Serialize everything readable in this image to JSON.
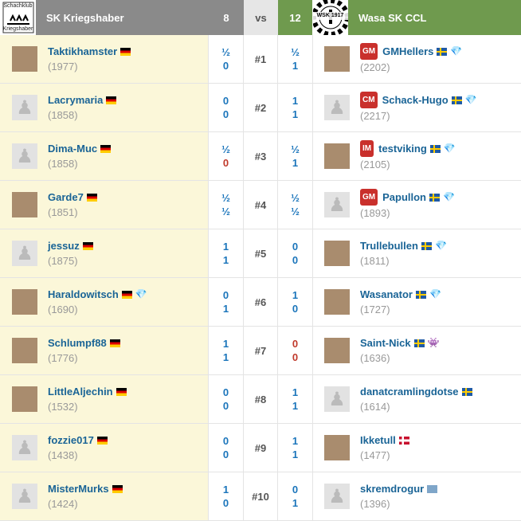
{
  "header": {
    "home_team": "SK Kriegshaber",
    "home_score": "8",
    "vs": "vs",
    "away_score": "12",
    "away_team": "Wasa SK CCL",
    "home_logo_text": "Schachklub Kriegshaber",
    "away_logo_text": "WSK 1917"
  },
  "colors": {
    "home_header": "#8a8a8a",
    "away_header": "#6f9a4e",
    "home_bg": "#fbf7d9",
    "score_blue": "#1b75bb",
    "score_red": "#c0392b"
  },
  "boards": [
    {
      "no": "#1",
      "home": {
        "name": "Taktikhamster",
        "rating": "(1977)",
        "flag": "de",
        "avatar": "photo"
      },
      "hs": [
        "½",
        "0"
      ],
      "as": [
        "½",
        "1"
      ],
      "away": {
        "name": "GMHellers",
        "title": "GM",
        "rating": "(2202)",
        "flag": "se",
        "badge": "diamond",
        "avatar": "photo"
      }
    },
    {
      "no": "#2",
      "home": {
        "name": "Lacrymaria",
        "rating": "(1858)",
        "flag": "de",
        "avatar": "pawn"
      },
      "hs": [
        "0",
        "0"
      ],
      "as": [
        "1",
        "1"
      ],
      "away": {
        "name": "Schack-Hugo",
        "title": "CM",
        "rating": "(2217)",
        "flag": "se",
        "badge": "diamond",
        "avatar": "pawn"
      }
    },
    {
      "no": "#3",
      "home": {
        "name": "Dima-Muc",
        "rating": "(1858)",
        "flag": "de",
        "avatar": "pawn"
      },
      "hs": [
        "½",
        "0"
      ],
      "hs_red": [
        false,
        true
      ],
      "as": [
        "½",
        "1"
      ],
      "away": {
        "name": "testviking",
        "title": "IM",
        "rating": "(2105)",
        "flag": "se",
        "badge": "diamond",
        "avatar": "photo"
      }
    },
    {
      "no": "#4",
      "home": {
        "name": "Garde7",
        "rating": "(1851)",
        "flag": "de",
        "avatar": "photo"
      },
      "hs": [
        "½",
        "½"
      ],
      "as": [
        "½",
        "½"
      ],
      "away": {
        "name": "Papullon",
        "title": "GM",
        "rating": "(1893)",
        "flag": "se",
        "badge": "diamond",
        "avatar": "pawn"
      }
    },
    {
      "no": "#5",
      "home": {
        "name": "jessuz",
        "rating": "(1875)",
        "flag": "de",
        "avatar": "pawn"
      },
      "hs": [
        "1",
        "1"
      ],
      "as": [
        "0",
        "0"
      ],
      "away": {
        "name": "Trullebullen",
        "rating": "(1811)",
        "flag": "se",
        "badge": "diamond",
        "avatar": "photo"
      }
    },
    {
      "no": "#6",
      "home": {
        "name": "Haraldowitsch",
        "rating": "(1690)",
        "flag": "de",
        "badge": "diamond",
        "avatar": "photo"
      },
      "hs": [
        "0",
        "1"
      ],
      "as": [
        "1",
        "0"
      ],
      "away": {
        "name": "Wasanator",
        "rating": "(1727)",
        "flag": "se",
        "badge": "diamond",
        "avatar": "photo"
      }
    },
    {
      "no": "#7",
      "home": {
        "name": "Schlumpf88",
        "rating": "(1776)",
        "flag": "de",
        "avatar": "photo"
      },
      "hs": [
        "1",
        "1"
      ],
      "as": [
        "0",
        "0"
      ],
      "as_red": [
        true,
        true
      ],
      "away": {
        "name": "Saint-Nick",
        "rating": "(1636)",
        "flag": "se",
        "badge": "alien",
        "avatar": "photo"
      }
    },
    {
      "no": "#8",
      "home": {
        "name": "LittleAljechin",
        "rating": "(1532)",
        "flag": "de",
        "avatar": "photo"
      },
      "hs": [
        "0",
        "0"
      ],
      "as": [
        "1",
        "1"
      ],
      "away": {
        "name": "danatcramlingdotse",
        "rating": "(1614)",
        "flag": "se",
        "avatar": "pawn"
      }
    },
    {
      "no": "#9",
      "home": {
        "name": "fozzie017",
        "rating": "(1438)",
        "flag": "de",
        "avatar": "pawn"
      },
      "hs": [
        "0",
        "0"
      ],
      "as": [
        "1",
        "1"
      ],
      "away": {
        "name": "Ikketull",
        "rating": "(1477)",
        "flag": "no",
        "avatar": "photo"
      }
    },
    {
      "no": "#10",
      "home": {
        "name": "MisterMurks",
        "rating": "(1424)",
        "flag": "de",
        "avatar": "pawn"
      },
      "hs": [
        "1",
        "0"
      ],
      "as": [
        "0",
        "1"
      ],
      "away": {
        "name": "skremdrogur",
        "rating": "(1396)",
        "flag": "int",
        "avatar": "pawn"
      }
    }
  ]
}
